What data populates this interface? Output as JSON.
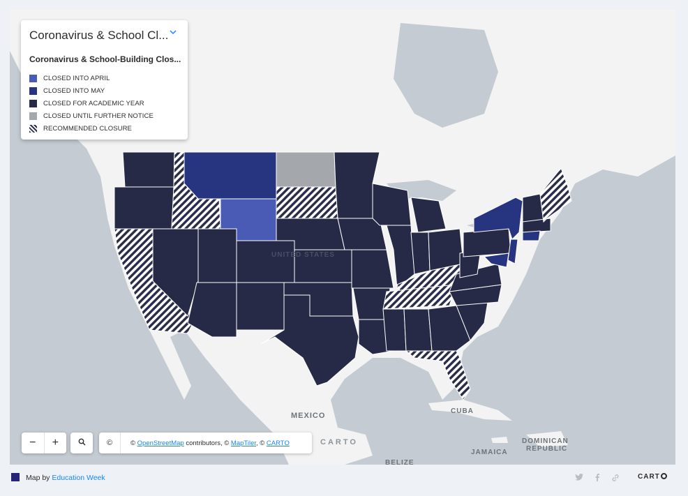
{
  "legend": {
    "title": "Coronavirus & School Cl...",
    "subtitle": "Coronavirus & School-Building Clos...",
    "items": [
      {
        "label": "CLOSED INTO APRIL",
        "color": "#4a5bb5"
      },
      {
        "label": "CLOSED INTO MAY",
        "color": "#273580"
      },
      {
        "label": "CLOSED FOR ACADEMIC YEAR",
        "color": "#272a46"
      },
      {
        "label": "CLOSED UNTIL FURTHER NOTICE",
        "color": "#a4a7ab"
      },
      {
        "label": "RECOMMENDED CLOSURE",
        "color": "hatched"
      }
    ]
  },
  "map_labels": {
    "country_us": "UNITED STATES",
    "mexico": "MEXICO",
    "cuba": "CUBA",
    "jamaica": "JAMAICA",
    "dominican_1": "DOMINICAN",
    "dominican_2": "REPUBLIC",
    "belize": "BELIZE"
  },
  "controls": {
    "zoom_out": "−",
    "zoom_in": "+",
    "copyright_symbol": "©",
    "attribution_prefix": "© ",
    "osm": "OpenStreetMap",
    "attribution_mid": " contributors, © ",
    "maptiler": "MapTiler",
    "attribution_sep": ", © ",
    "carto": "CARTO",
    "watermark": "CARTO"
  },
  "footer": {
    "map_by": "Map by ",
    "publisher": "Education Week",
    "carto": "CART"
  },
  "colors": {
    "academic_year": "#272a46",
    "into_may": "#273580",
    "into_april": "#4a5bb5",
    "further_notice": "#a4a7ab",
    "land": "#f3f3f3",
    "water": "#c4cbd2",
    "accent": "#1785fb"
  }
}
